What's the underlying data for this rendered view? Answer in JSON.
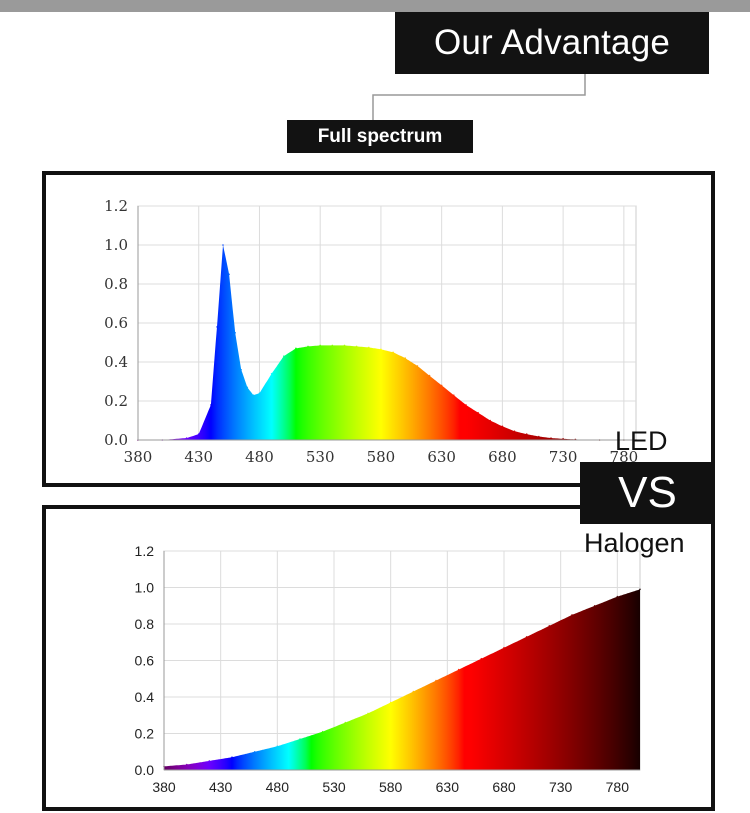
{
  "header": {
    "title": "Our Advantage",
    "subtitle": "Full spectrum"
  },
  "comparison": {
    "led_label": "LED",
    "vs_label": "VS",
    "halogen_label": "Halogen"
  },
  "colors": {
    "title_bg": "#121212",
    "title_text": "#ffffff",
    "top_bar": "#9a9a9a",
    "grid": "#dddddd"
  },
  "chart_data": [
    {
      "type": "area",
      "name": "led-spectrum",
      "title": "",
      "xlabel": "",
      "ylabel": "",
      "x": [
        380,
        400,
        420,
        430,
        440,
        445,
        450,
        455,
        460,
        465,
        470,
        475,
        480,
        490,
        500,
        510,
        520,
        530,
        540,
        550,
        560,
        570,
        580,
        590,
        600,
        610,
        620,
        630,
        640,
        650,
        660,
        670,
        680,
        690,
        700,
        710,
        720,
        730,
        740,
        760,
        780,
        790
      ],
      "y": [
        0.0,
        0.0,
        0.01,
        0.03,
        0.18,
        0.58,
        1.0,
        0.85,
        0.55,
        0.36,
        0.27,
        0.23,
        0.24,
        0.34,
        0.43,
        0.47,
        0.48,
        0.485,
        0.485,
        0.485,
        0.48,
        0.475,
        0.465,
        0.45,
        0.42,
        0.38,
        0.33,
        0.28,
        0.23,
        0.18,
        0.14,
        0.1,
        0.07,
        0.045,
        0.03,
        0.018,
        0.01,
        0.006,
        0.003,
        0.0,
        0.0,
        0.0
      ],
      "xlim": [
        380,
        790
      ],
      "ylim": [
        0,
        1.2
      ],
      "xticks": [
        "380",
        "430",
        "480",
        "530",
        "580",
        "630",
        "680",
        "730",
        "780"
      ],
      "yticks": [
        "0.0",
        "0.2",
        "0.4",
        "0.6",
        "0.8",
        "1.0",
        "1.2"
      ],
      "grid": true
    },
    {
      "type": "area",
      "name": "halogen-spectrum",
      "title": "",
      "xlabel": "",
      "ylabel": "",
      "x": [
        380,
        400,
        420,
        440,
        460,
        480,
        500,
        520,
        540,
        560,
        580,
        600,
        620,
        640,
        660,
        680,
        700,
        720,
        740,
        760,
        780,
        800
      ],
      "y": [
        0.02,
        0.03,
        0.05,
        0.07,
        0.1,
        0.13,
        0.17,
        0.21,
        0.26,
        0.31,
        0.37,
        0.43,
        0.49,
        0.55,
        0.61,
        0.67,
        0.73,
        0.79,
        0.85,
        0.9,
        0.95,
        0.99
      ],
      "xlim": [
        380,
        800
      ],
      "ylim": [
        0,
        1.2
      ],
      "xticks": [
        "380",
        "430",
        "480",
        "530",
        "580",
        "630",
        "680",
        "730",
        "780"
      ],
      "yticks": [
        "0.0",
        "0.2",
        "0.4",
        "0.6",
        "0.8",
        "1.0",
        "1.2"
      ],
      "grid": true
    }
  ]
}
